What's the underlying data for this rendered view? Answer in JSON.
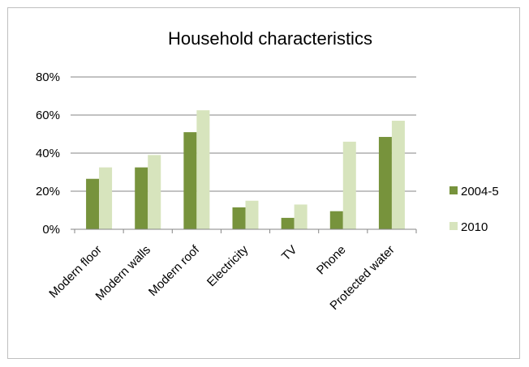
{
  "chart_data": {
    "type": "bar",
    "title": "Household characteristics",
    "categories": [
      "Modern floor",
      "Modern walls",
      "Modern roof",
      "Electricity",
      "TV",
      "Phone",
      "Protected water"
    ],
    "series": [
      {
        "name": "2004-5",
        "color": "#77933c",
        "values": [
          26.5,
          32.5,
          51,
          11.5,
          6,
          9.5,
          48.5
        ]
      },
      {
        "name": "2010",
        "color": "#d7e4bd",
        "values": [
          32.5,
          39,
          62.5,
          15,
          13,
          46,
          57
        ]
      }
    ],
    "y_ticks": [
      "0%",
      "20%",
      "40%",
      "60%",
      "80%"
    ],
    "ylim": [
      0,
      80
    ],
    "legend_position": "right",
    "grid": true
  }
}
